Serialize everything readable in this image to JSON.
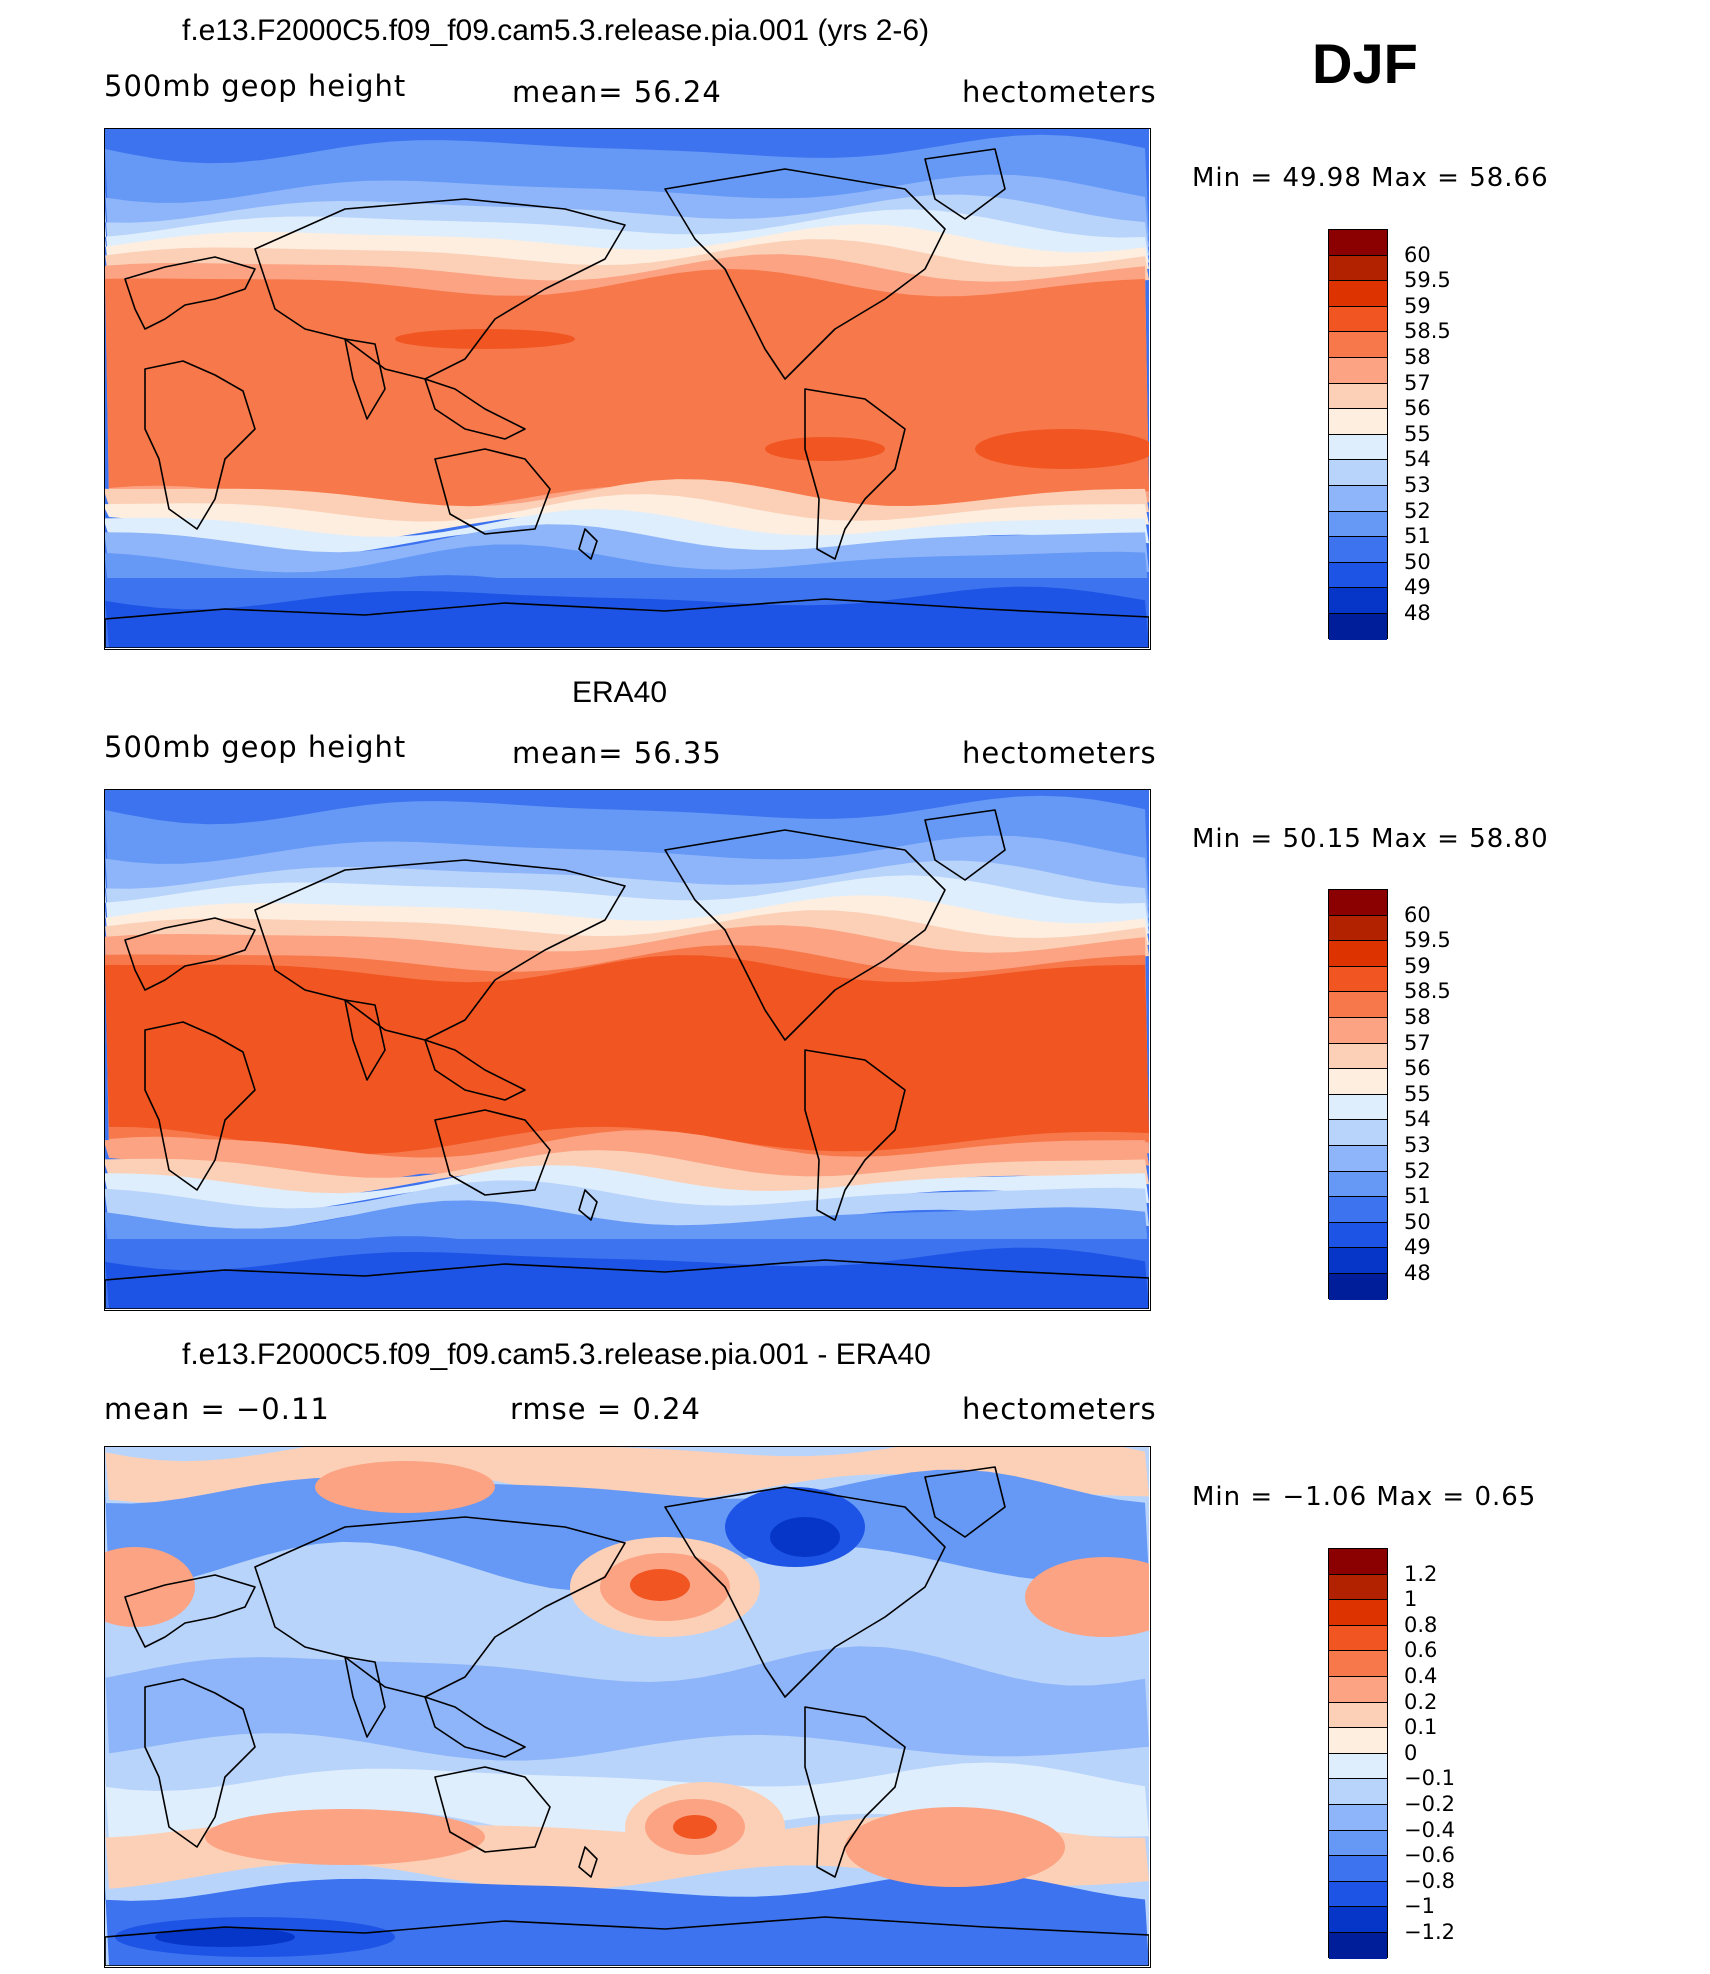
{
  "season": "DJF",
  "panels": [
    {
      "title": "f.e13.F2000C5.f09_f09.cam5.3.release.pia.001 (yrs 2-6)",
      "left_label": "500mb  geop  height",
      "center_label": "mean=   56.24",
      "right_label": "hectometers",
      "minmax": "Min  =    49.98  Max  =    58.66",
      "kind": "model",
      "colorbar": {
        "colors": [
          "#8b0000",
          "#b22200",
          "#dd3300",
          "#f05522",
          "#f7784a",
          "#fba383",
          "#fcd0b6",
          "#fdeee0",
          "#dfeefc",
          "#b9d4fb",
          "#8eb5fa",
          "#6699f5",
          "#3d73ef",
          "#1d54e6",
          "#0636c8",
          "#001e9a"
        ],
        "labels": [
          "60",
          "59.5",
          "59",
          "58.5",
          "58",
          "57",
          "56",
          "55",
          "54",
          "53",
          "52",
          "51",
          "50",
          "49",
          "48"
        ]
      }
    },
    {
      "title": "ERA40",
      "left_label": "500mb  geop  height",
      "center_label": "mean=   56.35",
      "right_label": "hectometers",
      "minmax": "Min  =    50.15  Max  =    58.80",
      "kind": "obs",
      "colorbar": {
        "colors": [
          "#8b0000",
          "#b22200",
          "#dd3300",
          "#f05522",
          "#f7784a",
          "#fba383",
          "#fcd0b6",
          "#fdeee0",
          "#dfeefc",
          "#b9d4fb",
          "#8eb5fa",
          "#6699f5",
          "#3d73ef",
          "#1d54e6",
          "#0636c8",
          "#001e9a"
        ],
        "labels": [
          "60",
          "59.5",
          "59",
          "58.5",
          "58",
          "57",
          "56",
          "55",
          "54",
          "53",
          "52",
          "51",
          "50",
          "49",
          "48"
        ]
      }
    },
    {
      "title": "f.e13.F2000C5.f09_f09.cam5.3.release.pia.001 - ERA40",
      "left_label": "mean  =    −0.11",
      "center_label": "rmse  =     0.24",
      "right_label": "hectometers",
      "minmax": "Min  =   −1.06  Max  =     0.65",
      "kind": "diff",
      "colorbar": {
        "colors": [
          "#8b0000",
          "#b22200",
          "#dd3300",
          "#f05522",
          "#f7784a",
          "#fba383",
          "#fcd0b6",
          "#fdeee0",
          "#dfeefc",
          "#b9d4fb",
          "#8eb5fa",
          "#6699f5",
          "#3d73ef",
          "#1d54e6",
          "#0636c8",
          "#001e9a"
        ],
        "labels": [
          "1.2",
          "1",
          "0.8",
          "0.6",
          "0.4",
          "0.2",
          "0.1",
          "0",
          "−0.1",
          "−0.2",
          "−0.4",
          "−0.6",
          "−0.8",
          "−1",
          "−1.2"
        ]
      }
    }
  ]
}
